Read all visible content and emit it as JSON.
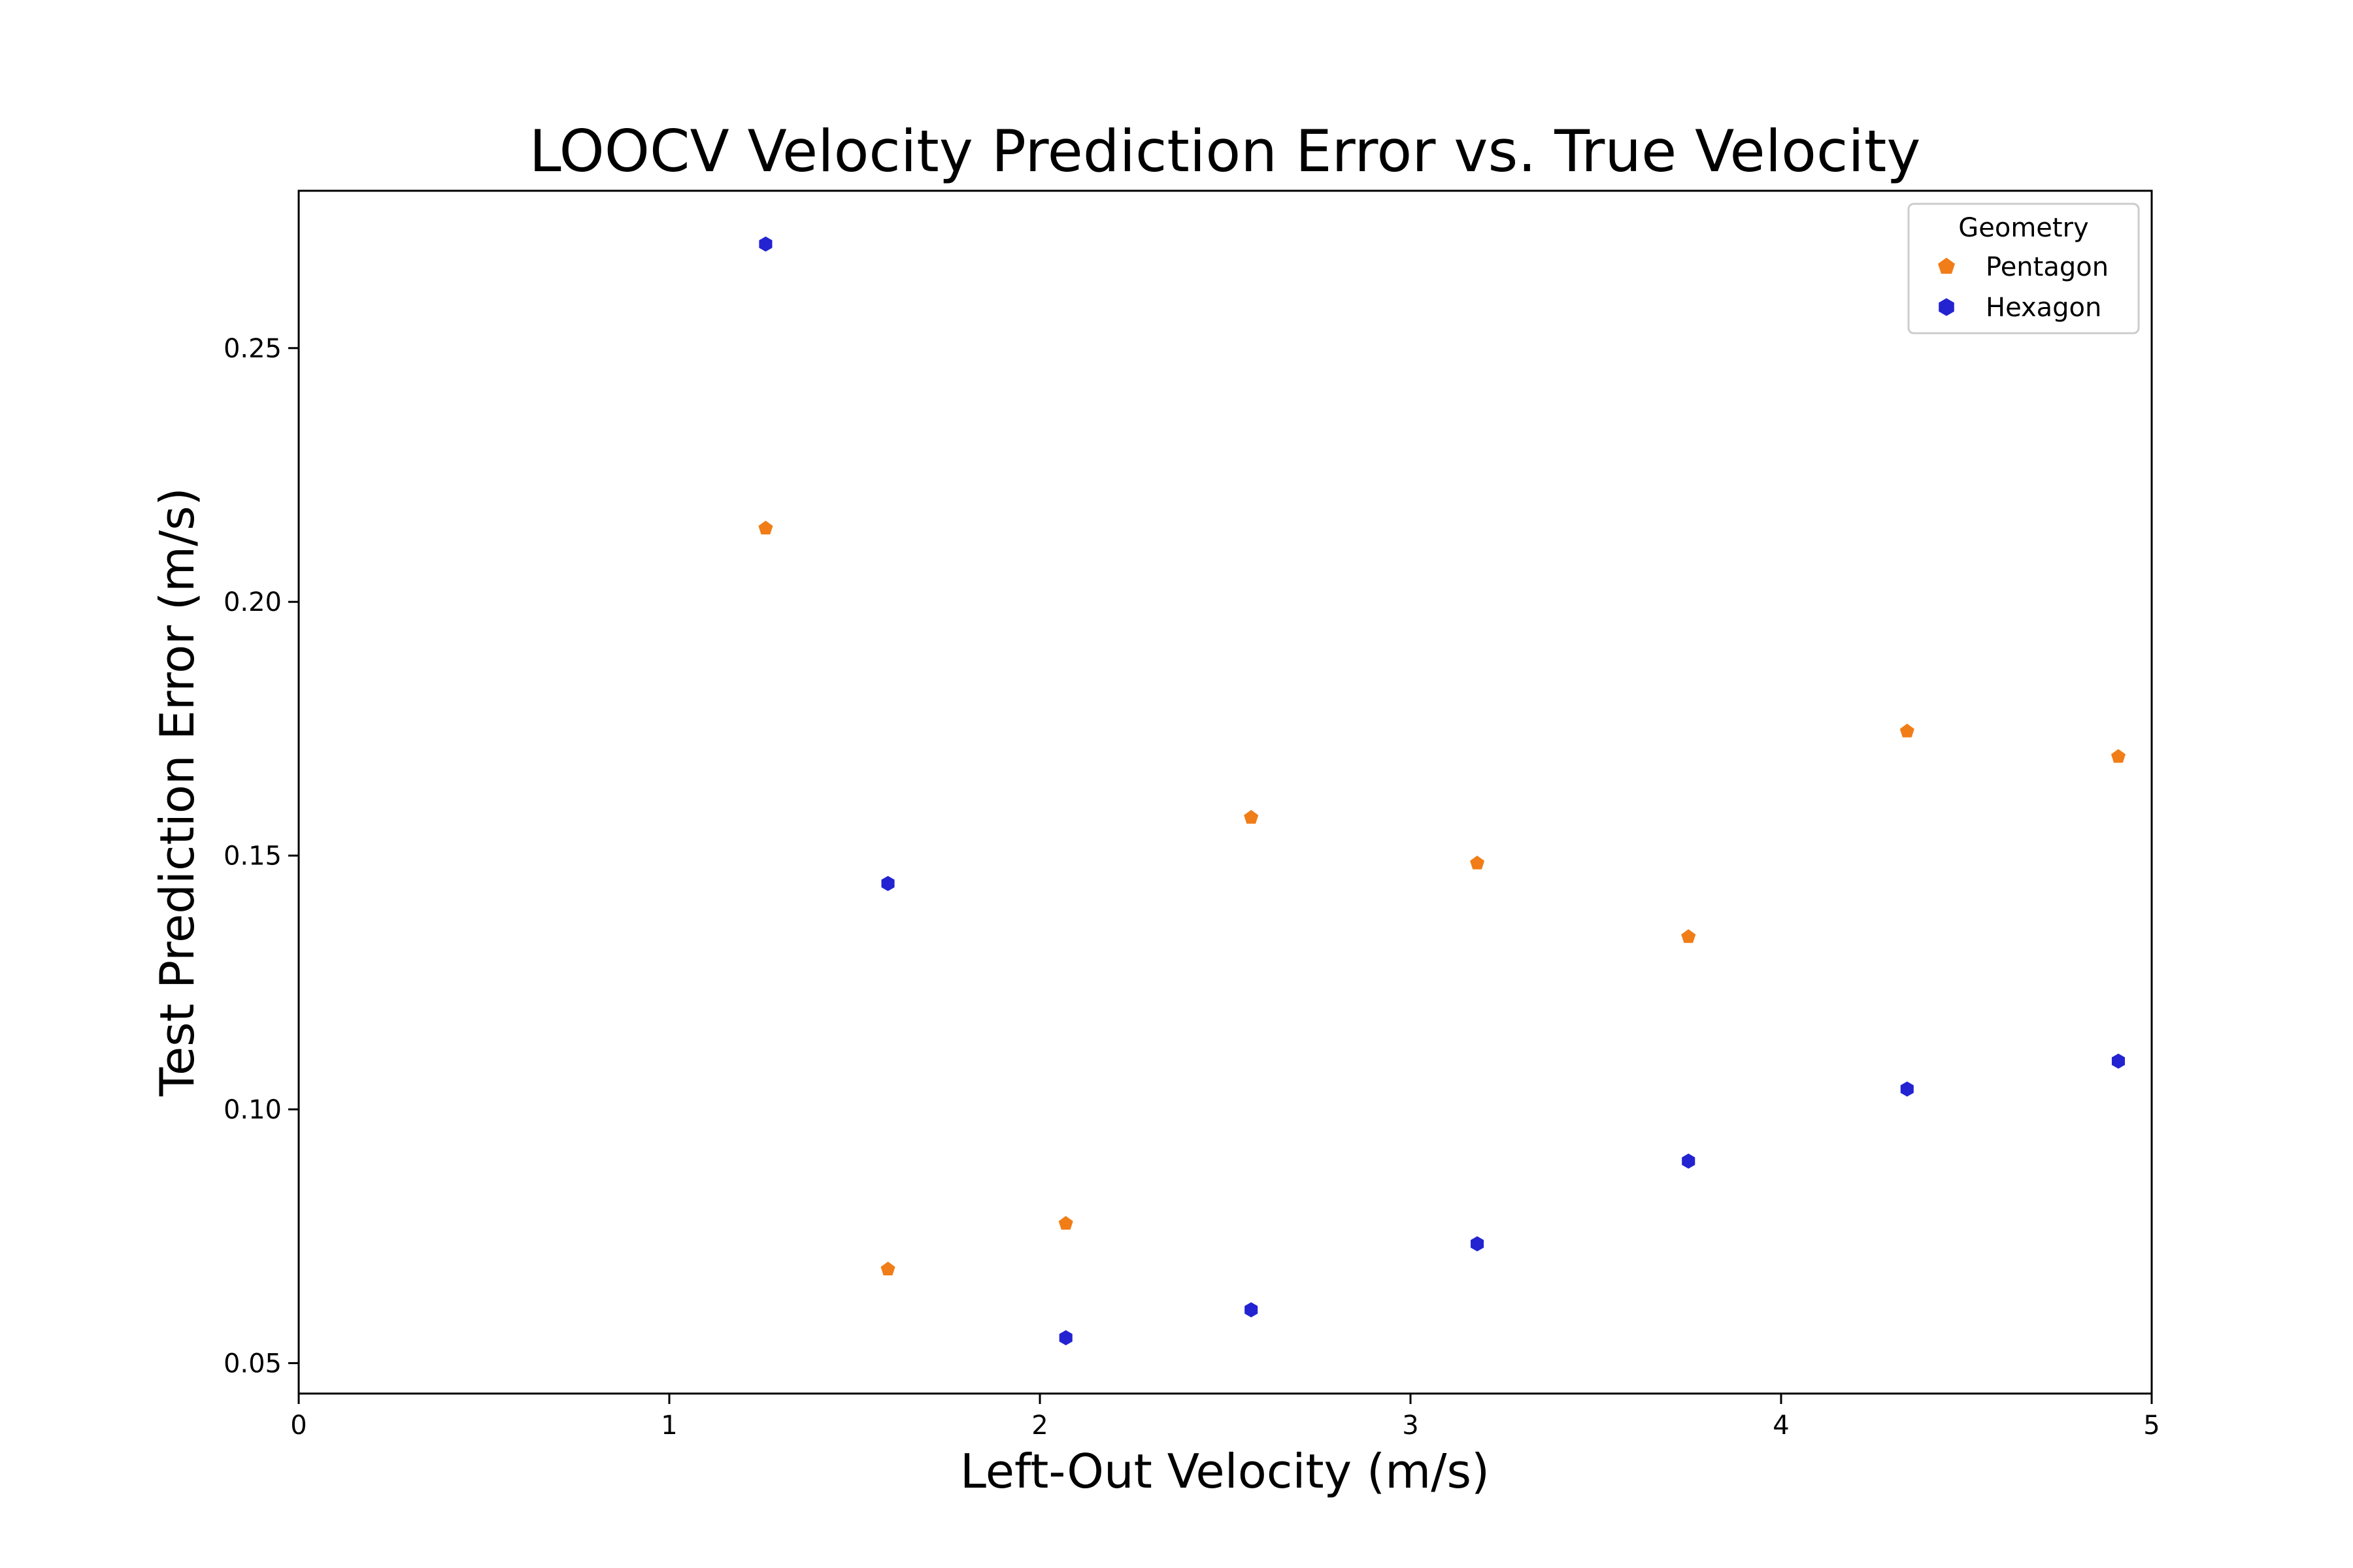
{
  "chart_data": {
    "type": "scatter",
    "title": "LOOCV Velocity Prediction Error vs. True Velocity",
    "xlabel": "Left-Out Velocity (m/s)",
    "ylabel": "Test Prediction Error (m/s)",
    "xlim": [
      0,
      5
    ],
    "ylim": [
      0.044,
      0.281
    ],
    "xticks": [
      "0",
      "1",
      "2",
      "3",
      "4",
      "5"
    ],
    "yticks": [
      "0.05",
      "0.10",
      "0.15",
      "0.20",
      "0.25"
    ],
    "grid": false,
    "legend": {
      "title": "Geometry",
      "placement": "top-right"
    },
    "series": [
      {
        "name": "Pentagon",
        "color": "#f07d18",
        "marker": "pentagon",
        "x": [
          1.26,
          1.59,
          2.07,
          2.57,
          3.18,
          3.75,
          4.34,
          4.91
        ],
        "y": [
          0.2145,
          0.0685,
          0.0775,
          0.1575,
          0.1485,
          0.134,
          0.1745,
          0.1695
        ]
      },
      {
        "name": "Hexagon",
        "color": "#2323d2",
        "marker": "hexagon",
        "x": [
          1.26,
          1.59,
          2.07,
          2.57,
          3.18,
          3.75,
          4.34,
          4.91
        ],
        "y": [
          0.2705,
          0.1445,
          0.055,
          0.0605,
          0.0735,
          0.0898,
          0.104,
          0.1095
        ]
      }
    ]
  }
}
